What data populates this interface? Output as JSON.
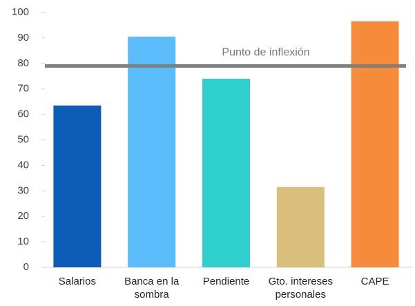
{
  "chart_data": {
    "type": "bar",
    "categories": [
      "Salarios",
      "Banca en la sombra",
      "Pendiente",
      "Gto. intereses personales",
      "CAPE"
    ],
    "values": [
      63.5,
      90.5,
      74,
      31.5,
      96.5
    ],
    "colors": [
      "#0d5db8",
      "#5bbcfc",
      "#2ecfcd",
      "#d8c07c",
      "#f68b3c"
    ],
    "ylim": [
      0,
      100
    ],
    "yticks": [
      0,
      10,
      20,
      30,
      40,
      50,
      60,
      70,
      80,
      90,
      100
    ],
    "grid": false,
    "annotations": [
      {
        "text": "Punto de inflexión",
        "value": 79,
        "color": "#808080"
      }
    ]
  }
}
